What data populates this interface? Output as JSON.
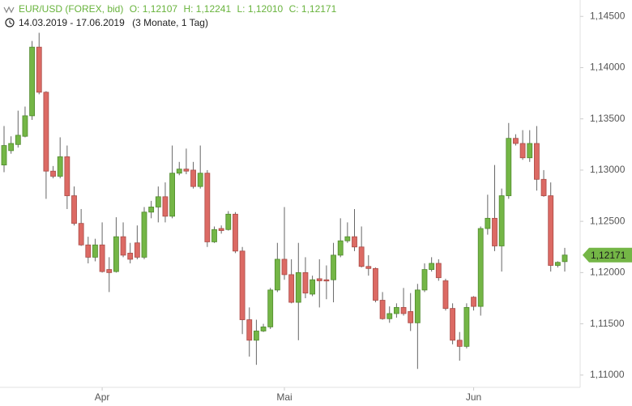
{
  "chart_data": {
    "type": "candlestick",
    "title": "EUR/USD (FOREX, bid)",
    "ohlc_labels": [
      "O: 1,12107",
      "H: 1,12241",
      "L: 1,12010",
      "C: 1,12171"
    ],
    "date_range": "14.03.2019 - 17.06.2019",
    "period": "(3 Monate, 1 Tag)",
    "last_price_label": "1,12171",
    "up_color": "#74b646",
    "down_color": "#dc6a64",
    "title_color": "#68b33c",
    "categories": [
      null,
      null,
      null,
      null,
      null,
      null,
      null,
      null,
      null,
      null,
      null,
      null,
      null,
      null,
      "Apr",
      null,
      null,
      null,
      null,
      null,
      null,
      null,
      null,
      null,
      null,
      null,
      null,
      null,
      null,
      null,
      null,
      null,
      null,
      null,
      null,
      null,
      null,
      null,
      null,
      null,
      "Mai",
      null,
      null,
      null,
      null,
      null,
      null,
      null,
      null,
      null,
      null,
      null,
      null,
      null,
      null,
      null,
      null,
      null,
      null,
      null,
      null,
      null,
      null,
      null,
      null,
      null,
      null,
      "Jun",
      null,
      null,
      null,
      null,
      null,
      null,
      null,
      null,
      null,
      null,
      null,
      null,
      null
    ],
    "open": [
      1.1305,
      1.1319,
      1.1325,
      1.1333,
      1.1353,
      1.142,
      1.1376,
      1.1299,
      1.1294,
      1.1313,
      1.1275,
      1.1248,
      1.1227,
      1.1215,
      1.1227,
      1.1203,
      1.1201,
      1.1235,
      1.1219,
      1.1229,
      1.1215,
      1.1259,
      1.1264,
      1.1274,
      1.1255,
      1.1297,
      1.1301,
      1.13,
      1.1284,
      1.1297,
      1.123,
      1.1243,
      1.1242,
      1.1257,
      1.1221,
      1.1154,
      1.1134,
      1.1143,
      1.1147,
      1.1183,
      1.1213,
      1.1198,
      1.1171,
      1.12,
      1.1179,
      1.1194,
      1.1193,
      1.1193,
      1.1217,
      1.1231,
      1.1235,
      1.1225,
      1.1206,
      1.1204,
      1.1173,
      1.1155,
      1.116,
      1.1166,
      1.1162,
      1.1151,
      1.1183,
      1.1203,
      1.1209,
      1.1192,
      1.1165,
      1.1134,
      1.1128,
      1.1176,
      1.1167,
      1.1243,
      1.1253,
      1.1226,
      1.1275,
      1.1331,
      1.1326,
      1.1312,
      1.1326,
      1.1291,
      1.1275,
      1.1207,
      1.12107
    ],
    "high": [
      1.1343,
      1.1333,
      1.1358,
      1.1362,
      1.1426,
      1.1434,
      1.1377,
      1.1304,
      1.1332,
      1.1324,
      1.1284,
      1.1262,
      1.1235,
      1.1233,
      1.1249,
      1.1215,
      1.1254,
      1.1249,
      1.1229,
      1.1246,
      1.1264,
      1.127,
      1.1284,
      1.1288,
      1.1324,
      1.1308,
      1.1321,
      1.1308,
      1.1324,
      1.13,
      1.1245,
      1.1246,
      1.126,
      1.1259,
      1.1225,
      1.1166,
      1.1154,
      1.115,
      1.1185,
      1.1229,
      1.1264,
      1.1213,
      1.1229,
      1.1215,
      1.1197,
      1.1213,
      1.1207,
      1.1229,
      1.1253,
      1.1249,
      1.1262,
      1.1245,
      1.1217,
      1.1205,
      1.1181,
      1.1167,
      1.117,
      1.1185,
      1.118,
      1.1189,
      1.1209,
      1.1215,
      1.1213,
      1.1194,
      1.117,
      1.1142,
      1.117,
      1.1177,
      1.1245,
      1.1276,
      1.1305,
      1.1282,
      1.1346,
      1.1335,
      1.1339,
      1.1339,
      1.1343,
      1.13,
      1.1288,
      1.1211,
      1.12241
    ],
    "low": [
      1.1298,
      1.1316,
      1.1322,
      1.1332,
      1.1349,
      1.1374,
      1.1272,
      1.1292,
      1.1292,
      1.1262,
      1.1246,
      1.1226,
      1.1209,
      1.1211,
      1.12,
      1.1181,
      1.12,
      1.1215,
      1.1209,
      1.1213,
      1.1213,
      1.1253,
      1.1249,
      1.1249,
      1.1253,
      1.1295,
      1.1296,
      1.1282,
      1.1282,
      1.1225,
      1.1229,
      1.1238,
      1.1241,
      1.1219,
      1.114,
      1.1118,
      1.111,
      1.1142,
      1.1145,
      1.1181,
      1.1193,
      1.117,
      1.1134,
      1.1175,
      1.1177,
      1.1166,
      1.1174,
      1.1171,
      1.1215,
      1.1229,
      1.1221,
      1.1205,
      1.1197,
      1.1171,
      1.1154,
      1.1151,
      1.1156,
      1.1158,
      1.1143,
      1.1106,
      1.1181,
      1.1201,
      1.1192,
      1.1163,
      1.113,
      1.1114,
      1.1126,
      1.1163,
      1.1158,
      1.1237,
      1.1221,
      1.1201,
      1.1272,
      1.1324,
      1.131,
      1.1308,
      1.128,
      1.1274,
      1.1201,
      1.1205,
      1.1201
    ],
    "close": [
      1.1324,
      1.1326,
      1.1334,
      1.1353,
      1.142,
      1.1376,
      1.1299,
      1.1294,
      1.1313,
      1.1275,
      1.1248,
      1.1227,
      1.1215,
      1.1227,
      1.1201,
      1.12,
      1.1235,
      1.1217,
      1.1213,
      1.1215,
      1.1259,
      1.1264,
      1.1274,
      1.1255,
      1.1297,
      1.1301,
      1.1299,
      1.1284,
      1.1297,
      1.123,
      1.1242,
      1.1241,
      1.1257,
      1.1221,
      1.1154,
      1.1134,
      1.1143,
      1.1147,
      1.1183,
      1.1213,
      1.1198,
      1.1171,
      1.12,
      1.118,
      1.1193,
      1.1192,
      1.1192,
      1.1217,
      1.1231,
      1.1235,
      1.1225,
      1.1206,
      1.1204,
      1.1173,
      1.1155,
      1.116,
      1.1166,
      1.116,
      1.1151,
      1.1183,
      1.1203,
      1.1209,
      1.1195,
      1.1165,
      1.1134,
      1.1128,
      1.1166,
      1.1167,
      1.1243,
      1.1253,
      1.1226,
      1.1275,
      1.1331,
      1.1326,
      1.1312,
      1.1326,
      1.1291,
      1.1275,
      1.1207,
      1.121,
      1.12171
    ],
    "ylim": [
      1.1088,
      1.1466
    ],
    "yticks": [
      {
        "value": 1.145,
        "label": "1,14500"
      },
      {
        "value": 1.14,
        "label": "1,14000"
      },
      {
        "value": 1.135,
        "label": "1,13500"
      },
      {
        "value": 1.13,
        "label": "1,13000"
      },
      {
        "value": 1.125,
        "label": "1,12500"
      },
      {
        "value": 1.12,
        "label": "1,12000"
      },
      {
        "value": 1.115,
        "label": "1,11500"
      },
      {
        "value": 1.11,
        "label": "1,11000"
      }
    ]
  }
}
